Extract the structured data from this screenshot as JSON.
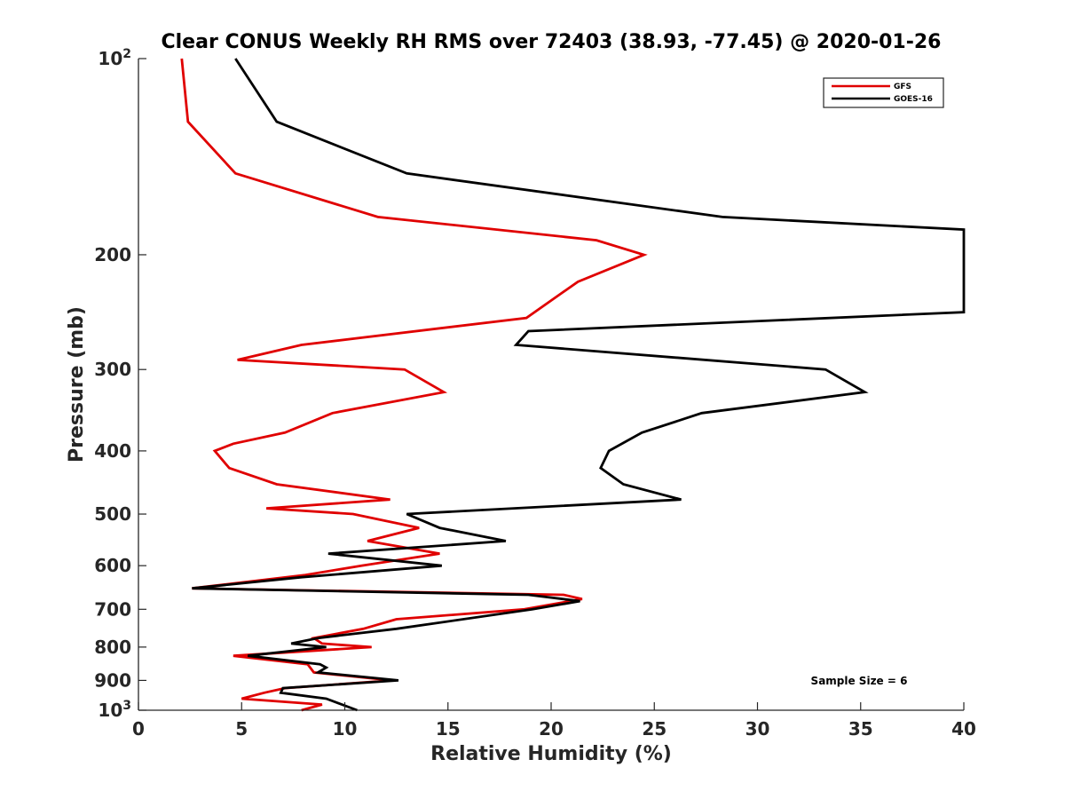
{
  "chart_data": {
    "type": "line",
    "title": "Clear CONUS Weekly RH RMS over 72403 (38.93, -77.45) @ 2020-01-26",
    "xlabel": "Relative Humidity (%)",
    "ylabel": "Pressure (mb)",
    "xlim": [
      0,
      40
    ],
    "ylim": [
      100,
      1000
    ],
    "y_scale": "log",
    "y_reversed": true,
    "x_ticks": [
      "0",
      "5",
      "10",
      "15",
      "20",
      "25",
      "30",
      "35",
      "40"
    ],
    "y_ticks": [
      {
        "value": 100,
        "base": "10",
        "exp": "2"
      },
      {
        "value": 200,
        "label": "200"
      },
      {
        "value": 300,
        "label": "300"
      },
      {
        "value": 400,
        "label": "400"
      },
      {
        "value": 500,
        "label": "500"
      },
      {
        "value": 600,
        "label": "600"
      },
      {
        "value": 700,
        "label": "700"
      },
      {
        "value": 800,
        "label": "800"
      },
      {
        "value": 900,
        "label": "900"
      },
      {
        "value": 1000,
        "base": "10",
        "exp": "3"
      }
    ],
    "legend_position": "top-right",
    "grid": false,
    "annotation": "Sample Size = 6",
    "series": [
      {
        "name": "GFS",
        "color": "#e00000",
        "points": [
          [
            2.1,
            100
          ],
          [
            2.4,
            125
          ],
          [
            4.7,
            150
          ],
          [
            11.6,
            175
          ],
          [
            22.2,
            190
          ],
          [
            24.5,
            200
          ],
          [
            21.3,
            220
          ],
          [
            18.8,
            250
          ],
          [
            7.9,
            275
          ],
          [
            4.8,
            290
          ],
          [
            12.9,
            300
          ],
          [
            14.8,
            325
          ],
          [
            9.4,
            350
          ],
          [
            7.1,
            375
          ],
          [
            4.6,
            390
          ],
          [
            3.7,
            400
          ],
          [
            4.4,
            425
          ],
          [
            6.7,
            450
          ],
          [
            12.2,
            475
          ],
          [
            6.2,
            490
          ],
          [
            10.4,
            500
          ],
          [
            13.6,
            525
          ],
          [
            11.1,
            550
          ],
          [
            14.6,
            575
          ],
          [
            10.8,
            600
          ],
          [
            8.1,
            620
          ],
          [
            2.6,
            650
          ],
          [
            20.6,
            665
          ],
          [
            21.5,
            675
          ],
          [
            18.7,
            700
          ],
          [
            12.5,
            725
          ],
          [
            10.9,
            750
          ],
          [
            8.5,
            775
          ],
          [
            8.9,
            790
          ],
          [
            11.3,
            800
          ],
          [
            4.6,
            825
          ],
          [
            8.2,
            850
          ],
          [
            8.5,
            875
          ],
          [
            12.3,
            900
          ],
          [
            7.1,
            925
          ],
          [
            6.1,
            940
          ],
          [
            5,
            960
          ],
          [
            8.9,
            980
          ],
          [
            7.9,
            1000
          ]
        ]
      },
      {
        "name": "GOES-16",
        "color": "#000000",
        "points": [
          [
            4.7,
            100
          ],
          [
            6.7,
            125
          ],
          [
            13,
            150
          ],
          [
            28.3,
            175
          ],
          [
            40,
            183
          ],
          [
            40,
            245
          ],
          [
            18.9,
            262
          ],
          [
            18.3,
            275
          ],
          [
            33.3,
            300
          ],
          [
            35.2,
            325
          ],
          [
            27.3,
            350
          ],
          [
            24.4,
            375
          ],
          [
            22.8,
            400
          ],
          [
            22.4,
            425
          ],
          [
            23.5,
            450
          ],
          [
            26.3,
            475
          ],
          [
            13,
            500
          ],
          [
            14.6,
            525
          ],
          [
            17.8,
            550
          ],
          [
            9.2,
            575
          ],
          [
            14.7,
            600
          ],
          [
            7.9,
            625
          ],
          [
            2.6,
            650
          ],
          [
            18.9,
            665
          ],
          [
            21.4,
            680
          ],
          [
            19.1,
            700
          ],
          [
            12.5,
            750
          ],
          [
            8.7,
            775
          ],
          [
            7.4,
            790
          ],
          [
            9.1,
            800
          ],
          [
            5.3,
            825
          ],
          [
            8.8,
            850
          ],
          [
            9.1,
            860
          ],
          [
            8.7,
            875
          ],
          [
            12.6,
            900
          ],
          [
            7,
            925
          ],
          [
            6.9,
            940
          ],
          [
            9.1,
            960
          ],
          [
            10.6,
            1000
          ]
        ]
      }
    ]
  }
}
